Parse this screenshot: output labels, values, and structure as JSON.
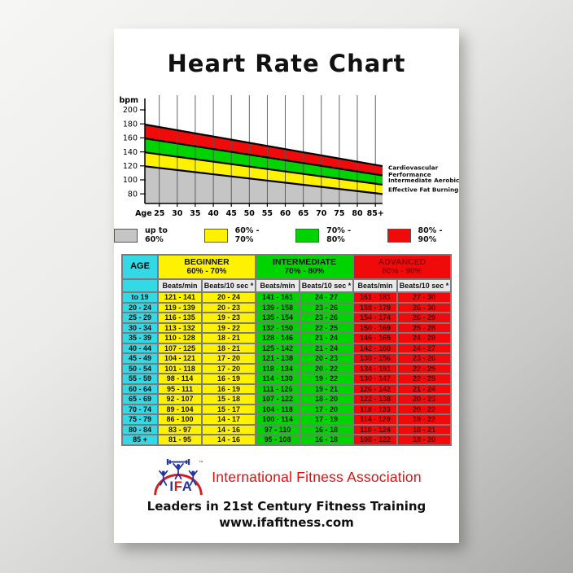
{
  "poster_title": "Heart Rate Chart",
  "chart_data": [
    {
      "type": "area",
      "title": "Heart Rate Chart",
      "ylabel": "bpm",
      "y_ticks": [
        200,
        180,
        160,
        140,
        120,
        100,
        80
      ],
      "ylim": [
        66,
        221
      ],
      "x_axis_label": "Age",
      "x_ticks": [
        "25",
        "30",
        "35",
        "40",
        "45",
        "50",
        "55",
        "60",
        "65",
        "70",
        "75",
        "80",
        "85+"
      ],
      "age_range": [
        21,
        87
      ],
      "max_hr_rule": "220 - age",
      "grid": true,
      "bands": [
        {
          "legend": "80% - 90%",
          "pct": [
            0.8,
            0.9
          ],
          "color": "#f00a0a",
          "zone_label_lines": [
            "Cardiovascular",
            "Performance"
          ]
        },
        {
          "legend": "70% - 80%",
          "pct": [
            0.7,
            0.8
          ],
          "color": "#00d400",
          "zone_label_lines": [
            "Intermediate Aerobic"
          ]
        },
        {
          "legend": "60% - 70%",
          "pct": [
            0.6,
            0.7
          ],
          "color": "#fff200",
          "zone_label_lines": [
            "Effective Fat Burning"
          ]
        },
        {
          "legend": "up to 60%",
          "pct": [
            0,
            0.6
          ],
          "color": "#c5c5c5",
          "zone_label_lines": []
        }
      ]
    },
    {
      "type": "table",
      "age_header": "AGE",
      "age_color": "#35d8e5",
      "sub_headers": [
        "Beats/min",
        "Beats/10 sec *"
      ],
      "groups": [
        {
          "label": "BEGINNER",
          "range": "60% - 70%",
          "color": "#fff200",
          "text_color": "#141414",
          "header_text_color": "#141414"
        },
        {
          "label": "INTERMEDIATE",
          "range": "70% - 80%",
          "color": "#00d400",
          "text_color": "#141414",
          "header_text_color": "#141414"
        },
        {
          "label": "ADVANCED",
          "range": "80% - 90%",
          "color": "#f00a0a",
          "text_color": "#4a0000",
          "header_text_color": "#8f0000"
        }
      ],
      "rows": [
        [
          "to 19",
          "121 - 141",
          "20 - 24",
          "141 - 161",
          "24 - 27",
          "161 - 181",
          "27 - 30"
        ],
        [
          "20 - 24",
          "119 - 139",
          "20 - 23",
          "139 - 158",
          "23 - 26",
          "158 - 178",
          "26 - 30"
        ],
        [
          "25 - 29",
          "116 - 135",
          "19 - 23",
          "135 - 154",
          "23 - 26",
          "154 - 174",
          "26 - 29"
        ],
        [
          "30 - 34",
          "113 - 132",
          "19 - 22",
          "132 - 150",
          "22 - 25",
          "150 - 169",
          "25 - 28"
        ],
        [
          "35 - 39",
          "110 - 128",
          "18 - 21",
          "128 - 146",
          "21 - 24",
          "146 - 165",
          "24 - 28"
        ],
        [
          "40 - 44",
          "107 - 125",
          "18 - 21",
          "125 - 142",
          "21 - 24",
          "142 - 160",
          "24 - 27"
        ],
        [
          "45 - 49",
          "104 - 121",
          "17 - 20",
          "121 - 138",
          "20 - 23",
          "138 - 156",
          "23 - 26"
        ],
        [
          "50 - 54",
          "101 - 118",
          "17 - 20",
          "118 - 134",
          "20 - 22",
          "134 - 151",
          "22 - 25"
        ],
        [
          "55 - 59",
          "98 - 114",
          "16 - 19",
          "114 - 130",
          "19 - 22",
          "130 - 147",
          "22 - 25"
        ],
        [
          "60 - 64",
          "95 - 111",
          "16 - 19",
          "111 - 126",
          "19 - 21",
          "126 - 142",
          "21 - 24"
        ],
        [
          "65 - 69",
          "92 - 107",
          "15 - 18",
          "107 - 122",
          "18 - 20",
          "122 - 138",
          "20 - 23"
        ],
        [
          "70 - 74",
          "89 - 104",
          "15 - 17",
          "104 - 118",
          "17 - 20",
          "118 - 133",
          "20 - 22"
        ],
        [
          "75 - 79",
          "86 - 100",
          "14 - 17",
          "100 - 114",
          "17 - 19",
          "114 - 129",
          "19 - 22"
        ],
        [
          "80 - 84",
          "83 - 97",
          "14 - 16",
          "97 - 110",
          "16 - 18",
          "110 - 124",
          "18 - 21"
        ],
        [
          "85 +",
          "81 - 95",
          "14 - 16",
          "95 - 108",
          "16 - 18",
          "108 - 122",
          "18 - 20"
        ]
      ]
    }
  ],
  "legend": [
    {
      "label": "up to 60%",
      "color": "#c5c5c5"
    },
    {
      "label": "60% - 70%",
      "color": "#fff200"
    },
    {
      "label": "70% - 80%",
      "color": "#00d400"
    },
    {
      "label": "80% - 90%",
      "color": "#f00a0a"
    }
  ],
  "footer": {
    "logo_letters": [
      "I",
      "F",
      "A"
    ],
    "trademark": "™",
    "org_name": "International Fitness Association",
    "tagline": "Leaders in 21st Century Fitness Training",
    "website": "www.ifafitness.com"
  },
  "colors": {
    "band_red": "#f00a0a",
    "band_green": "#00d400",
    "band_yellow": "#fff200",
    "band_gray": "#c5c5c5",
    "age_cyan": "#35d8e5",
    "subheader_gray": "#e9e9e9",
    "org_red": "#e31010",
    "logo_blue": "#23359f",
    "logo_red": "#cf2020"
  }
}
